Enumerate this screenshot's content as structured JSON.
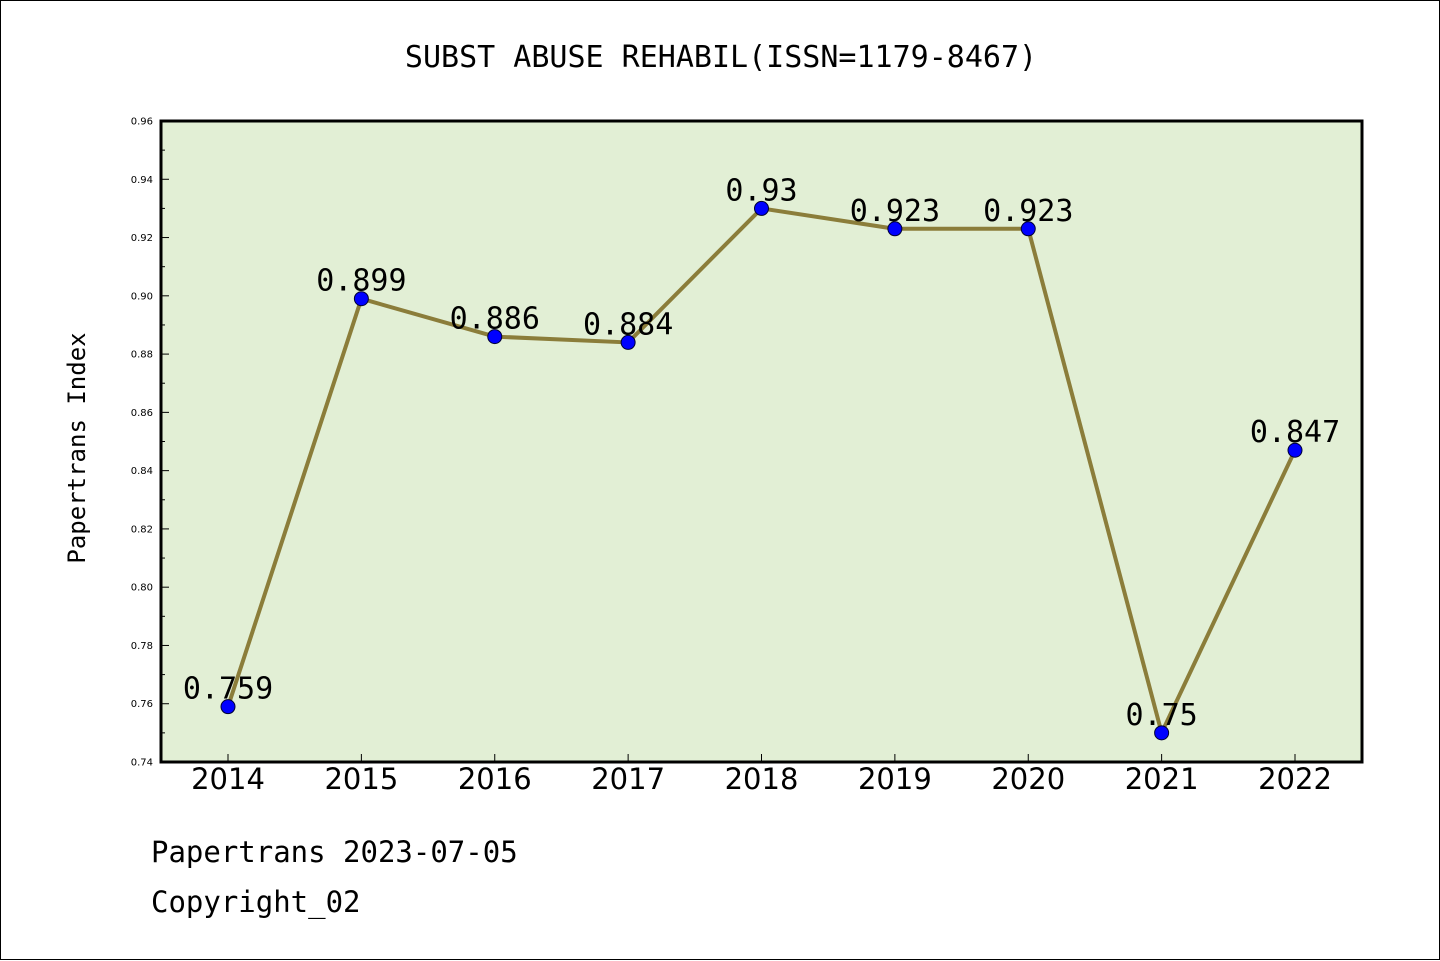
{
  "chart_data": {
    "type": "line",
    "title": "SUBST ABUSE REHABIL(ISSN=1179-8467)",
    "xlabel": "",
    "ylabel": "Papertrans Index",
    "categories": [
      "2014",
      "2015",
      "2016",
      "2017",
      "2018",
      "2019",
      "2020",
      "2021",
      "2022"
    ],
    "series": [
      {
        "values": [
          0.759,
          0.899,
          0.886,
          0.884,
          0.93,
          0.923,
          0.923,
          0.75,
          0.847
        ]
      }
    ],
    "data_labels": [
      "0.759",
      "0.899",
      "0.886",
      "0.884",
      "0.93",
      "0.923",
      "0.923",
      "0.75",
      "0.847"
    ],
    "ylim": [
      0.74,
      0.96
    ],
    "yticks": [
      "0.74",
      "0.76",
      "0.78",
      "0.80",
      "0.82",
      "0.84",
      "0.86",
      "0.88",
      "0.90",
      "0.92",
      "0.94",
      "0.96"
    ],
    "grid": false,
    "colors": {
      "plot_background": "#e2efd5",
      "line": "#8b7d3a",
      "marker": "#0000ff"
    }
  },
  "footer": {
    "line1": "Papertrans 2023-07-05",
    "line2": "Copyright_02"
  }
}
